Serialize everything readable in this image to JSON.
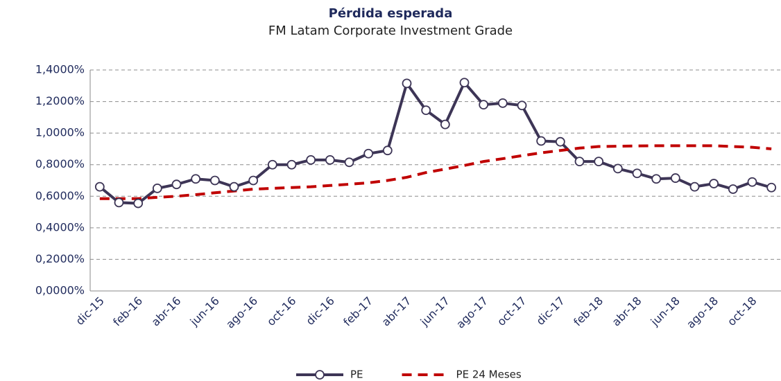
{
  "chart_data": {
    "type": "line",
    "title": "Pérdida esperada",
    "subtitle": "FM Latam Corporate Investment Grade",
    "categories": [
      "dic-15",
      null,
      "feb-16",
      null,
      "abr-16",
      null,
      "jun-16",
      null,
      "ago-16",
      null,
      "oct-16",
      null,
      "dic-16",
      null,
      "feb-17",
      null,
      "abr-17",
      null,
      "jun-17",
      null,
      "ago-17",
      null,
      "oct-17",
      null,
      "dic-17",
      null,
      "feb-18",
      null,
      "abr-18",
      null,
      "jun-18",
      null,
      "ago-18",
      null,
      "oct-18",
      null
    ],
    "series": [
      {
        "name": "PE",
        "color": "#3d3556",
        "style": "solid",
        "markers": true,
        "values": [
          0.66,
          0.56,
          0.555,
          0.65,
          0.675,
          0.71,
          0.7,
          0.66,
          0.7,
          0.8,
          0.8,
          0.83,
          0.83,
          0.815,
          0.87,
          0.89,
          1.315,
          1.145,
          1.055,
          1.32,
          1.18,
          1.19,
          1.175,
          0.95,
          0.945,
          0.82,
          0.82,
          0.775,
          0.745,
          0.71,
          0.715,
          0.66,
          0.68,
          0.645,
          0.69,
          0.655
        ]
      },
      {
        "name": "PE 24 Meses",
        "color": "#c00000",
        "style": "dashed",
        "markers": false,
        "values": [
          0.585,
          0.585,
          0.585,
          0.593,
          0.6,
          0.61,
          0.622,
          0.633,
          0.645,
          0.65,
          0.655,
          0.66,
          0.668,
          0.676,
          0.685,
          0.7,
          0.72,
          0.75,
          0.772,
          0.795,
          0.82,
          0.838,
          0.857,
          0.875,
          0.89,
          0.905,
          0.915,
          0.917,
          0.919,
          0.92,
          0.92,
          0.92,
          0.92,
          0.915,
          0.91,
          0.9
        ]
      }
    ],
    "ylim": [
      0,
      1.4
    ],
    "yticks": [
      {
        "value": 0,
        "label": "0,0000%"
      },
      {
        "value": 0.2,
        "label": "0,2000%"
      },
      {
        "value": 0.4,
        "label": "0,4000%"
      },
      {
        "value": 0.6,
        "label": "0,6000%"
      },
      {
        "value": 0.8,
        "label": "0,8000%"
      },
      {
        "value": 1.0,
        "label": "1,0000%"
      },
      {
        "value": 1.2,
        "label": "1,2000%"
      },
      {
        "value": 1.4,
        "label": "1,4000%"
      }
    ],
    "grid": true,
    "legend": "bottom"
  }
}
